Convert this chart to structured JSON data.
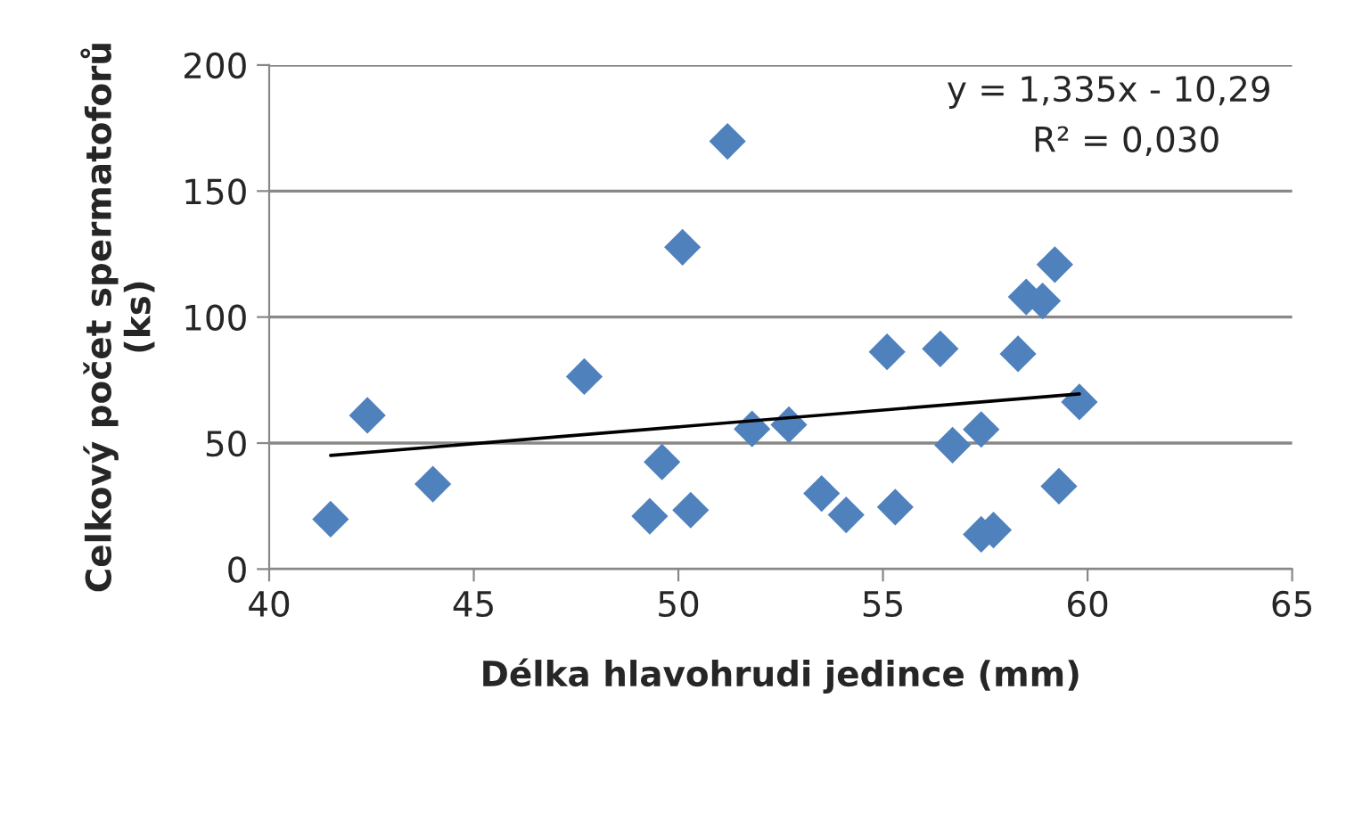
{
  "chart_data": {
    "type": "scatter",
    "xlabel": "Délka hlavohrudi jedince (mm)",
    "ylabel": "Celkový počet spermatoforů\n(ks)",
    "annotations": [
      "y = 1,335x - 10,29",
      "R² = 0,030"
    ],
    "series": [
      {
        "color": "#4f81bd",
        "marker": "diamond",
        "x": [
          41.5,
          42.4,
          44.0,
          47.7,
          49.6,
          49.3,
          50.3,
          50.1,
          51.2,
          51.8,
          52.7,
          53.5,
          54.1,
          55.1,
          55.3,
          56.4,
          56.7,
          57.4,
          57.4,
          57.7,
          58.3,
          58.5,
          58.9,
          59.2,
          59.3,
          59.8
        ],
        "values": [
          19.8,
          61,
          33.7,
          76.4,
          42.5,
          21,
          23.4,
          127.7,
          169.7,
          55.6,
          57.3,
          30,
          21.5,
          86.2,
          24.6,
          87.4,
          49.2,
          55.4,
          13.8,
          15.5,
          85.4,
          108,
          106.4,
          120.8,
          32.9,
          66.3
        ]
      },
      {
        "type": "line",
        "color": "#000000",
        "marker": "none",
        "line_style": "solid",
        "x": [
          41.5,
          59.8
        ],
        "values": [
          45.1,
          69.5
        ]
      }
    ],
    "xlim": [
      40,
      65
    ],
    "xticks": [
      40,
      45,
      50,
      55,
      60,
      65
    ],
    "ylim": [
      0,
      200
    ],
    "yticks": [
      0,
      50,
      100,
      150,
      200
    ],
    "grid": "y",
    "legend": false
  }
}
